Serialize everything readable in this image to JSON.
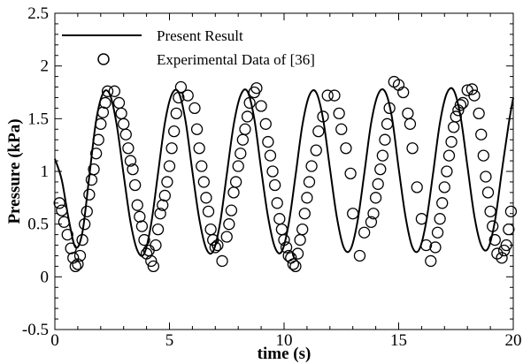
{
  "chart_data": {
    "type": "line",
    "title": "",
    "xlabel": "time (s)",
    "ylabel": "Pressure (kPa)",
    "xlim": [
      0,
      20
    ],
    "ylim": [
      -0.5,
      2.5
    ],
    "x_ticks": [
      "0",
      "5",
      "10",
      "15",
      "20"
    ],
    "y_ticks": [
      "-0.5",
      "0",
      "0.5",
      "1",
      "1.5",
      "2",
      "2.5"
    ],
    "grid": false,
    "legend_placement": "top-left",
    "legend": [
      "Present Result",
      "Experimental Data of [36]"
    ],
    "series": [
      {
        "name": "Present Result",
        "style": "solid-line",
        "color": "#000000",
        "x": [
          0.0,
          0.3,
          0.6,
          0.9,
          1.2,
          1.5,
          1.8,
          2.1,
          2.4,
          2.7,
          3.0,
          3.3,
          3.6,
          3.9,
          4.2,
          4.5,
          4.8,
          5.1,
          5.4,
          5.7,
          6.0,
          6.3,
          6.6,
          6.9,
          7.2,
          7.5,
          7.8,
          8.1,
          8.4,
          8.7,
          9.0,
          9.3,
          9.6,
          9.9,
          10.2,
          10.5,
          10.8,
          11.1,
          11.4,
          11.7,
          12.0,
          12.3,
          12.6,
          12.9,
          13.2,
          13.5,
          13.8,
          14.1,
          14.4,
          14.7,
          15.0,
          15.3,
          15.6,
          15.9,
          16.2,
          16.5,
          16.8,
          17.1,
          17.4,
          17.7,
          18.0,
          18.3,
          18.6,
          18.9,
          19.2,
          19.5,
          19.8,
          20.0
        ],
        "y": [
          1.12,
          0.92,
          0.55,
          0.28,
          0.42,
          0.95,
          1.48,
          1.74,
          1.73,
          1.44,
          0.97,
          0.52,
          0.25,
          0.22,
          0.5,
          0.98,
          1.46,
          1.73,
          1.75,
          1.48,
          1.0,
          0.55,
          0.27,
          0.24,
          0.5,
          0.97,
          1.44,
          1.72,
          1.76,
          1.5,
          1.02,
          0.57,
          0.28,
          0.24,
          0.5,
          0.96,
          1.44,
          1.72,
          1.75,
          1.5,
          1.03,
          0.57,
          0.28,
          0.26,
          0.52,
          0.98,
          1.46,
          1.73,
          1.76,
          1.52,
          1.03,
          0.57,
          0.28,
          0.26,
          0.52,
          0.98,
          1.46,
          1.74,
          1.77,
          1.52,
          1.05,
          0.58,
          0.3,
          0.27,
          0.53,
          1.0,
          1.45,
          1.7
        ]
      },
      {
        "name": "Experimental Data of [36]",
        "style": "open-circle",
        "color": "#000000",
        "x": [
          0.2,
          0.3,
          0.4,
          0.55,
          0.7,
          0.8,
          0.9,
          1.0,
          1.1,
          1.2,
          1.3,
          1.4,
          1.5,
          1.6,
          1.7,
          1.8,
          1.9,
          2.0,
          2.1,
          2.2,
          2.3,
          2.6,
          2.8,
          2.9,
          3.0,
          3.1,
          3.2,
          3.3,
          3.4,
          3.5,
          3.6,
          3.7,
          3.8,
          3.9,
          4.0,
          4.1,
          4.2,
          4.3,
          4.4,
          4.5,
          4.6,
          4.7,
          4.8,
          4.9,
          5.0,
          5.1,
          5.2,
          5.3,
          5.4,
          5.5,
          5.8,
          6.1,
          6.2,
          6.3,
          6.4,
          6.5,
          6.6,
          6.7,
          6.8,
          6.9,
          7.0,
          7.1,
          7.3,
          7.5,
          7.6,
          7.7,
          7.8,
          7.9,
          8.0,
          8.1,
          8.2,
          8.3,
          8.4,
          8.5,
          8.7,
          8.8,
          9.0,
          9.2,
          9.3,
          9.4,
          9.5,
          9.6,
          9.7,
          9.8,
          9.9,
          10.0,
          10.1,
          10.2,
          10.3,
          10.4,
          10.5,
          10.6,
          10.7,
          10.8,
          10.9,
          11.0,
          11.1,
          11.2,
          11.4,
          11.5,
          11.7,
          11.9,
          12.2,
          12.4,
          12.5,
          12.7,
          12.9,
          13.0,
          13.3,
          13.5,
          13.8,
          13.9,
          14.0,
          14.1,
          14.2,
          14.3,
          14.4,
          14.5,
          14.6,
          14.8,
          15.0,
          15.2,
          15.4,
          15.5,
          15.6,
          15.8,
          16.0,
          16.2,
          16.4,
          16.6,
          16.7,
          16.8,
          16.9,
          17.0,
          17.1,
          17.2,
          17.3,
          17.4,
          17.5,
          17.6,
          17.7,
          17.8,
          18.0,
          18.2,
          18.3,
          18.5,
          18.6,
          18.7,
          18.8,
          18.9,
          19.0,
          19.1,
          19.2,
          19.3,
          19.5,
          19.6,
          19.7,
          19.8,
          19.9
        ],
        "y": [
          0.7,
          0.63,
          0.52,
          0.4,
          0.27,
          0.18,
          0.1,
          0.12,
          0.2,
          0.35,
          0.5,
          0.62,
          0.78,
          0.92,
          1.02,
          1.17,
          1.3,
          1.45,
          1.56,
          1.65,
          1.76,
          1.76,
          1.65,
          1.55,
          1.45,
          1.35,
          1.22,
          1.1,
          1.02,
          0.87,
          0.68,
          0.57,
          0.48,
          0.35,
          0.22,
          0.25,
          0.15,
          0.1,
          0.3,
          0.45,
          0.6,
          0.68,
          0.77,
          0.9,
          1.05,
          1.22,
          1.38,
          1.55,
          1.7,
          1.8,
          1.72,
          1.6,
          1.4,
          1.22,
          1.05,
          0.9,
          0.75,
          0.62,
          0.45,
          0.35,
          0.28,
          0.3,
          0.15,
          0.38,
          0.5,
          0.63,
          0.8,
          0.9,
          1.05,
          1.17,
          1.3,
          1.4,
          1.52,
          1.65,
          1.75,
          1.79,
          1.62,
          1.45,
          1.28,
          1.15,
          1.0,
          0.87,
          0.7,
          0.55,
          0.45,
          0.35,
          0.28,
          0.2,
          0.18,
          0.12,
          0.1,
          0.22,
          0.35,
          0.45,
          0.6,
          0.75,
          0.9,
          1.05,
          1.2,
          1.38,
          1.52,
          1.72,
          1.72,
          1.55,
          1.4,
          1.22,
          0.98,
          0.6,
          0.2,
          0.42,
          0.52,
          0.6,
          0.75,
          0.88,
          1.02,
          1.15,
          1.3,
          1.45,
          1.6,
          1.85,
          1.82,
          1.75,
          1.55,
          1.45,
          1.22,
          0.85,
          0.55,
          0.3,
          0.15,
          0.28,
          0.42,
          0.55,
          0.7,
          0.85,
          1.0,
          1.15,
          1.28,
          1.42,
          1.52,
          1.58,
          1.63,
          1.65,
          1.77,
          1.78,
          1.72,
          1.55,
          1.35,
          1.15,
          0.95,
          0.8,
          0.62,
          0.48,
          0.35,
          0.22,
          0.18,
          0.25,
          0.3,
          0.45,
          0.62
        ]
      }
    ]
  }
}
